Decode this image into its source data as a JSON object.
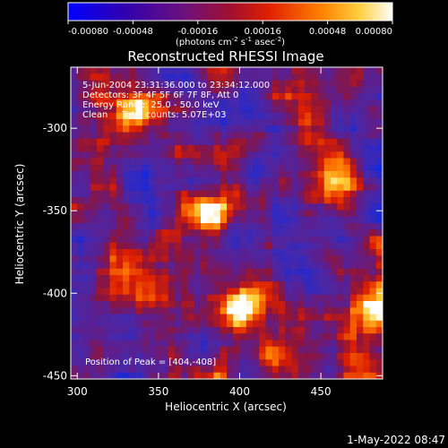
{
  "colorbar": {
    "min": -0.0008,
    "max": 0.0008,
    "tick_labels": [
      "-0.00080",
      "-0.00048",
      "-0.00016",
      "0.00016",
      "0.00048",
      "0.00080"
    ],
    "unit_label": "(photons cm",
    "unit_sup1": "-2",
    "unit_mid": " s",
    "unit_sup2": "-1",
    "unit_end": " asec",
    "unit_sup3": "-2",
    "unit_close": ")",
    "colormap_stops": [
      "#0000ff",
      "#400090",
      "#700060",
      "#b00000",
      "#ff4000",
      "#ffb000",
      "#ffffff"
    ]
  },
  "image": {
    "title": "Reconstructed RHESSI Image",
    "info_lines": [
      "5-Jun-2004 23:31:36.000 to 23:34:12.000",
      "Detectors: 3F 4F 5F 6F 7F 8F, Att 0",
      "Energy Range: 25.0 - 50.0 keV",
      "Clean     Total counts: 5.07E+03"
    ],
    "peak_text": "Position of Peak = [404,-408]",
    "peak_position": [
      404,
      -408
    ],
    "x_range": [
      296,
      488
    ],
    "y_range": [
      -452,
      -263
    ],
    "xlabel": "Heliocentric X (arcsec)",
    "ylabel": "Heliocentric Y (arcsec)",
    "x_ticks": [
      300,
      350,
      400,
      450
    ],
    "y_ticks": [
      -300,
      -350,
      -400,
      -450
    ],
    "bright_sources": [
      {
        "x": 404,
        "y": -408,
        "level": 1.0
      },
      {
        "x": 482,
        "y": -408,
        "level": 0.85
      },
      {
        "x": 335,
        "y": -290,
        "level": 0.7
      },
      {
        "x": 460,
        "y": -330,
        "level": 0.55
      },
      {
        "x": 380,
        "y": -350,
        "level": 0.55
      },
      {
        "x": 340,
        "y": -395,
        "level": 0.5
      },
      {
        "x": 420,
        "y": -440,
        "level": 0.45
      }
    ]
  },
  "footer": {
    "timestamp": "1-May-2022 08:47"
  }
}
